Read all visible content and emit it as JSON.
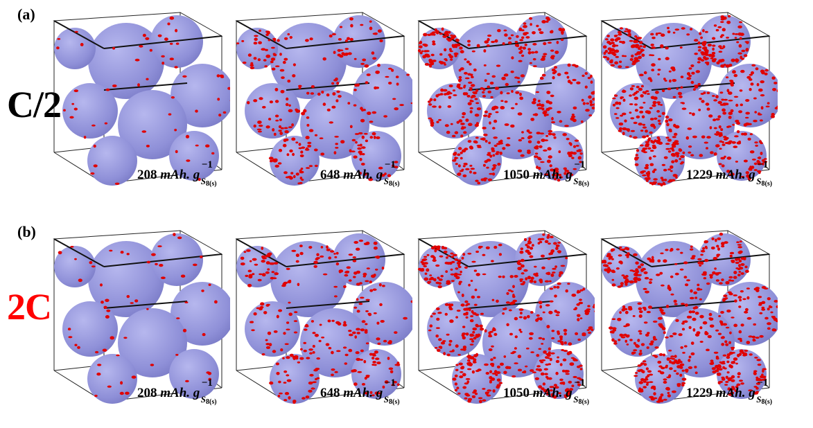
{
  "figure": {
    "rows": [
      {
        "panel": "(a)",
        "rate": "C/2",
        "rate_color": "#000000",
        "snapshots": [
          {
            "capacity": "208",
            "density": 60
          },
          {
            "capacity": "648",
            "density": 260
          },
          {
            "capacity": "1050",
            "density": 520
          },
          {
            "capacity": "1229",
            "density": 600
          }
        ]
      },
      {
        "panel": "(b)",
        "rate": "2C",
        "rate_color": "#ff0000",
        "snapshots": [
          {
            "capacity": "208",
            "density": 60
          },
          {
            "capacity": "648",
            "density": 280
          },
          {
            "capacity": "1050",
            "density": 540
          },
          {
            "capacity": "1229",
            "density": 580
          }
        ]
      }
    ],
    "unit": "mAh.",
    "unit_g": "g",
    "unit_sup": "−1",
    "unit_sub": "S",
    "unit_sub2": "8(s)",
    "colors": {
      "particle": "#8f90d8",
      "particle_shade": "#7778c4",
      "deposit": "#e00000",
      "frame": "#222222"
    }
  }
}
